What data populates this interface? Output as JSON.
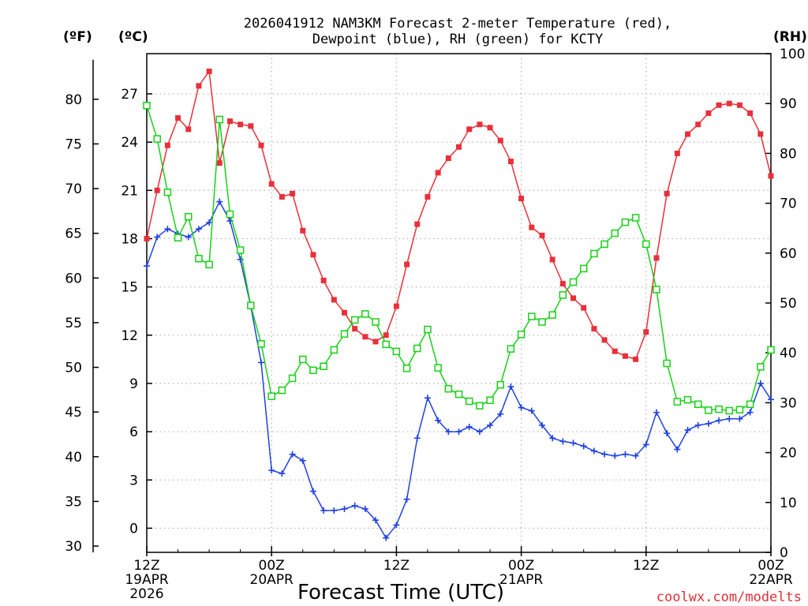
{
  "chart_data": {
    "type": "line",
    "title_line1": "2026041912 NAM3KM Forecast 2-meter Temperature (red),",
    "title_line2": "Dewpoint (blue), RH (green) for KCTY",
    "xlabel": "Forecast Time (UTC)",
    "credit": "coolwx.com/modelts",
    "units": {
      "fahrenheit": "(ºF)",
      "celsius": "(ºC)",
      "rh": "(RH)"
    },
    "xlim": [
      0,
      60
    ],
    "celsius_lim": [
      -1.5,
      29.5
    ],
    "rh_lim": [
      0,
      100
    ],
    "x_ticks": [
      {
        "pos": 0,
        "lines": [
          "12Z",
          "19APR",
          "2026"
        ]
      },
      {
        "pos": 12,
        "lines": [
          "00Z",
          "20APR"
        ]
      },
      {
        "pos": 24,
        "lines": [
          "12Z"
        ]
      },
      {
        "pos": 36,
        "lines": [
          "00Z",
          "21APR"
        ]
      },
      {
        "pos": 48,
        "lines": [
          "12Z"
        ]
      },
      {
        "pos": 60,
        "lines": [
          "00Z",
          "22APR"
        ]
      }
    ],
    "celsius_ticks": [
      "0",
      "3",
      "6",
      "9",
      "12",
      "15",
      "18",
      "21",
      "24",
      "27"
    ],
    "fahrenheit_ticks": [
      "30",
      "35",
      "40",
      "45",
      "50",
      "55",
      "60",
      "65",
      "70",
      "75",
      "80"
    ],
    "rh_ticks": [
      "0",
      "10",
      "20",
      "30",
      "40",
      "50",
      "60",
      "70",
      "80",
      "90",
      "100"
    ],
    "series": [
      {
        "name": "Temperature",
        "unit": "C",
        "color": "#e8303a",
        "marker": "filled-square",
        "values": [
          18.0,
          21.0,
          23.8,
          25.5,
          24.8,
          27.5,
          28.4,
          22.7,
          25.3,
          25.1,
          25.0,
          23.8,
          21.4,
          20.6,
          20.8,
          18.5,
          17.0,
          15.4,
          14.2,
          13.4,
          12.4,
          11.9,
          11.6,
          12.0,
          13.8,
          16.4,
          18.9,
          20.6,
          22.1,
          23.0,
          23.7,
          24.8,
          25.1,
          24.9,
          24.1,
          22.8,
          20.5,
          18.7,
          18.2,
          16.7,
          15.2,
          14.3,
          13.7,
          12.4,
          11.7,
          11.0,
          10.7,
          10.5,
          12.2,
          16.8,
          20.8,
          23.3,
          24.5,
          25.1,
          25.8,
          26.3,
          26.4,
          26.3,
          25.8,
          24.5,
          21.9
        ]
      },
      {
        "name": "Dewpoint",
        "unit": "C",
        "color": "#2040e0",
        "marker": "plus",
        "values": [
          16.3,
          18.1,
          18.6,
          18.3,
          18.1,
          18.6,
          19.0,
          20.3,
          19.1,
          16.7,
          13.8,
          10.3,
          3.6,
          3.4,
          4.6,
          4.2,
          2.3,
          1.1,
          1.1,
          1.2,
          1.4,
          1.2,
          0.5,
          -0.6,
          0.2,
          1.8,
          5.6,
          8.1,
          6.7,
          6.0,
          6.0,
          6.3,
          6.0,
          6.4,
          7.1,
          8.8,
          7.5,
          7.3,
          6.4,
          5.6,
          5.4,
          5.3,
          5.1,
          4.8,
          4.6,
          4.5,
          4.6,
          4.5,
          5.2,
          7.2,
          5.9,
          4.9,
          6.1,
          6.4,
          6.5,
          6.7,
          6.8,
          6.8,
          7.2,
          9.0,
          8.0
        ]
      },
      {
        "name": "RH",
        "unit": "%",
        "color": "#18d018",
        "marker": "hollow-square",
        "values": [
          89.6,
          82.9,
          72.2,
          63.1,
          67.3,
          58.9,
          57.7,
          86.8,
          67.8,
          60.6,
          49.5,
          41.8,
          31.3,
          32.5,
          34.9,
          38.7,
          36.5,
          37.3,
          40.6,
          43.8,
          46.6,
          47.8,
          46.2,
          41.7,
          40.3,
          36.9,
          40.9,
          44.7,
          37.0,
          32.8,
          31.7,
          30.3,
          29.4,
          30.5,
          33.6,
          40.8,
          43.7,
          47.3,
          46.2,
          47.6,
          51.6,
          54.2,
          56.9,
          59.9,
          61.8,
          64.0,
          66.2,
          67.1,
          61.8,
          52.7,
          37.9,
          30.2,
          30.6,
          29.7,
          28.5,
          28.7,
          28.4,
          28.6,
          29.7,
          37.2,
          40.6
        ]
      }
    ]
  }
}
